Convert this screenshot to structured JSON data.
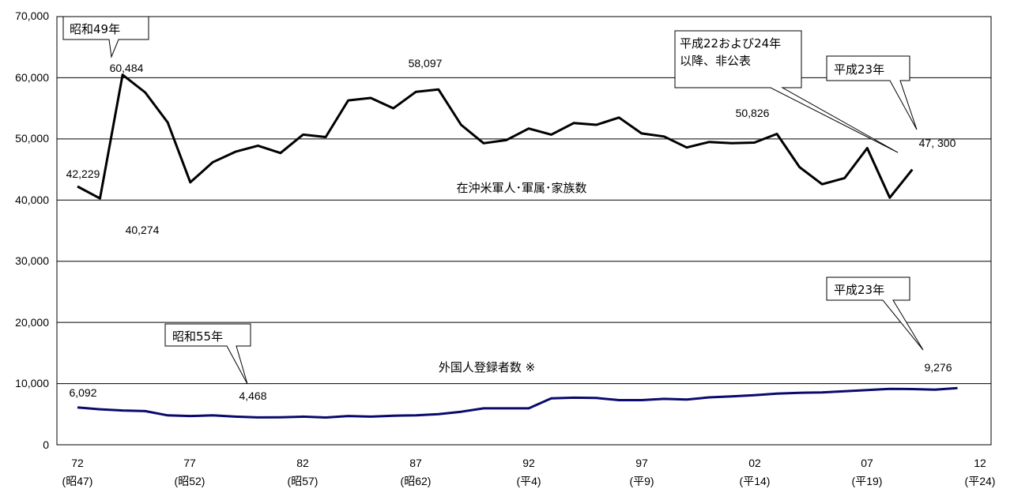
{
  "chart_data": {
    "type": "line",
    "title": "",
    "xlabel": "",
    "ylabel": "",
    "ylim": [
      0,
      70000
    ],
    "xlim": [
      1972,
      2012
    ],
    "grid": true,
    "y_ticks": [
      "0",
      "10,000",
      "20,000",
      "30,000",
      "40,000",
      "50,000",
      "60,000",
      "70,000"
    ],
    "x_ticks": [
      {
        "year": 1972,
        "label": "72",
        "sub": "(昭47)"
      },
      {
        "year": 1977,
        "label": "77",
        "sub": "(昭52)"
      },
      {
        "year": 1982,
        "label": "82",
        "sub": "(昭57)"
      },
      {
        "year": 1987,
        "label": "87",
        "sub": "(昭62)"
      },
      {
        "year": 1992,
        "label": "92",
        "sub": "(平4)"
      },
      {
        "year": 1997,
        "label": "97",
        "sub": "(平9)"
      },
      {
        "year": 2002,
        "label": "02",
        "sub": "(平14)"
      },
      {
        "year": 2007,
        "label": "07",
        "sub": "(平19)"
      },
      {
        "year": 2012,
        "label": "12",
        "sub": "(平24)"
      }
    ],
    "series": [
      {
        "name": "在沖米軍人･軍属･家族数",
        "color": "#000000",
        "x": [
          1972,
          1973,
          1974,
          1975,
          1976,
          1977,
          1978,
          1979,
          1980,
          1981,
          1982,
          1983,
          1984,
          1985,
          1986,
          1987,
          1988,
          1989,
          1990,
          1991,
          1992,
          1993,
          1994,
          1995,
          1996,
          1997,
          1998,
          1999,
          2000,
          2001,
          2002,
          2003,
          2004,
          2005,
          2006,
          2007,
          2008,
          2009
        ],
        "values": [
          42229,
          40274,
          60484,
          57600,
          52700,
          42900,
          46200,
          47900,
          48900,
          47700,
          50700,
          50300,
          56300,
          56700,
          55000,
          57700,
          58097,
          52300,
          49300,
          49800,
          51700,
          50700,
          52600,
          52300,
          53500,
          50900,
          50400,
          48600,
          49500,
          49300,
          49400,
          50826,
          45400,
          42600,
          43600,
          48500,
          40400,
          45000
        ]
      },
      {
        "name": "外国人登録者数 ※",
        "color": "#0a0a6e",
        "x": [
          1972,
          1973,
          1974,
          1975,
          1976,
          1977,
          1978,
          1979,
          1980,
          1981,
          1982,
          1983,
          1984,
          1985,
          1986,
          1987,
          1988,
          1989,
          1990,
          1991,
          1992,
          1993,
          1994,
          1995,
          1996,
          1997,
          1998,
          1999,
          2000,
          2001,
          2002,
          2003,
          2004,
          2005,
          2006,
          2007,
          2008,
          2009,
          2010,
          2011
        ],
        "values": [
          6092,
          5800,
          5600,
          5500,
          4800,
          4700,
          4800,
          4600,
          4468,
          4500,
          4600,
          4450,
          4700,
          4600,
          4750,
          4800,
          5000,
          5400,
          5950,
          5950,
          5950,
          7600,
          7700,
          7650,
          7300,
          7300,
          7500,
          7400,
          7750,
          7900,
          8100,
          8350,
          8500,
          8550,
          8750,
          8950,
          9150,
          9100,
          9000,
          9276
        ]
      }
    ],
    "annotations": {
      "v42229": "42,229",
      "v40274": "40,274",
      "v60484": "60,484",
      "v58097": "58,097",
      "v50826": "50,826",
      "v47300": "47, 300",
      "v6092": "6,092",
      "v4468": "4,468",
      "v9276": "9,276",
      "series1_label": "在沖米軍人･軍属･家族数",
      "series2_label": "外国人登録者数 ※"
    },
    "callouts": {
      "showa49": "昭和49年",
      "showa55": "昭和55年",
      "heisei22_line1": "平成22および24年",
      "heisei22_line2": "以降、非公表",
      "heisei23_top": "平成23年",
      "heisei23_bottom": "平成23年"
    }
  }
}
